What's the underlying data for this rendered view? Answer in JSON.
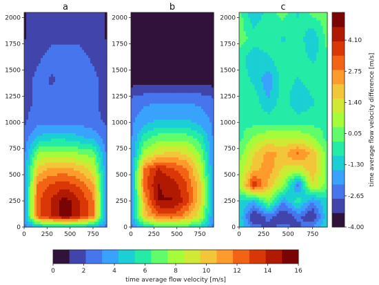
{
  "chart_data": {
    "type": "heatmap",
    "shared_x_ticks": [
      "0",
      "250",
      "500",
      "750"
    ],
    "shared_y_ticks": [
      "0",
      "250",
      "500",
      "750",
      "1000",
      "1250",
      "1500",
      "1750",
      "2000"
    ],
    "x_range": [
      0,
      900
    ],
    "y_range": [
      0,
      2050
    ],
    "panels": [
      {
        "title": "a",
        "color_scale": "velocity",
        "x": [
          0,
          150,
          300,
          450,
          600,
          750,
          900
        ],
        "y": [
          0,
          100,
          250,
          400,
          550,
          700,
          850,
          1000,
          1200,
          1400,
          1600,
          1800,
          2050
        ],
        "z": [
          [
            3.0,
            4.0,
            4.5,
            4.5,
            4.5,
            4.0,
            3.0
          ],
          [
            3.0,
            12.5,
            14.0,
            15.5,
            14.0,
            12.0,
            3.0
          ],
          [
            3.0,
            12.5,
            14.0,
            15.5,
            14.0,
            12.0,
            3.0
          ],
          [
            3.0,
            12.0,
            13.0,
            13.5,
            12.5,
            11.0,
            3.0
          ],
          [
            3.0,
            10.0,
            11.0,
            11.0,
            10.5,
            9.0,
            3.0
          ],
          [
            3.0,
            7.5,
            8.0,
            8.0,
            7.5,
            7.0,
            3.0
          ],
          [
            2.5,
            4.5,
            5.0,
            5.0,
            4.5,
            4.0,
            2.5
          ],
          [
            2.0,
            3.0,
            3.0,
            3.0,
            3.0,
            2.5,
            2.0
          ],
          [
            1.5,
            2.5,
            2.5,
            3.0,
            2.5,
            2.5,
            1.5
          ],
          [
            1.5,
            2.5,
            2.0,
            2.5,
            3.0,
            2.5,
            1.5
          ],
          [
            1.5,
            2.0,
            2.5,
            2.5,
            2.5,
            2.0,
            1.5
          ],
          [
            1.0,
            1.5,
            2.0,
            2.0,
            2.0,
            1.5,
            1.0
          ],
          [
            1.0,
            1.5,
            1.5,
            1.5,
            2.0,
            1.5,
            1.0
          ]
        ]
      },
      {
        "title": "b",
        "color_scale": "velocity",
        "x": [
          0,
          150,
          300,
          450,
          600,
          750,
          900
        ],
        "y": [
          0,
          100,
          250,
          400,
          550,
          700,
          850,
          1000,
          1200,
          1400,
          1600,
          1800,
          2050
        ],
        "z": [
          [
            3.0,
            5.0,
            6.0,
            6.0,
            6.0,
            5.0,
            3.0
          ],
          [
            3.0,
            10.0,
            12.0,
            12.5,
            11.0,
            9.0,
            3.0
          ],
          [
            3.0,
            11.0,
            15.0,
            15.0,
            13.5,
            10.0,
            3.0
          ],
          [
            3.0,
            12.5,
            15.0,
            14.5,
            13.0,
            10.0,
            3.0
          ],
          [
            3.0,
            12.0,
            14.0,
            13.0,
            12.0,
            9.0,
            3.0
          ],
          [
            3.0,
            8.0,
            9.5,
            10.0,
            9.5,
            7.5,
            3.0
          ],
          [
            3.0,
            6.0,
            7.0,
            7.0,
            7.0,
            6.0,
            3.0
          ],
          [
            3.0,
            4.0,
            4.5,
            4.5,
            4.5,
            4.0,
            3.0
          ],
          [
            2.5,
            3.0,
            3.0,
            3.0,
            3.0,
            3.0,
            2.5
          ],
          [
            0.5,
            0.5,
            0.5,
            0.5,
            0.5,
            0.5,
            0.5
          ],
          [
            0.5,
            0.5,
            0.5,
            0.5,
            0.5,
            0.5,
            0.5
          ],
          [
            0.5,
            0.5,
            0.5,
            0.5,
            0.5,
            0.5,
            0.5
          ],
          [
            0.5,
            0.5,
            0.5,
            0.5,
            0.5,
            0.5,
            0.5
          ]
        ]
      },
      {
        "title": "c",
        "color_scale": "difference",
        "x": [
          0,
          150,
          300,
          450,
          600,
          750,
          900
        ],
        "y": [
          0,
          100,
          250,
          400,
          550,
          700,
          850,
          1000,
          1200,
          1400,
          1600,
          1800,
          2050
        ],
        "z": [
          [
            -1.0,
            -2.5,
            -3.0,
            -2.5,
            -3.0,
            -2.0,
            -1.0
          ],
          [
            -1.0,
            -3.5,
            -2.5,
            -3.5,
            -2.5,
            -3.5,
            -1.0
          ],
          [
            -1.0,
            -1.5,
            0.5,
            -2.0,
            -0.5,
            -2.0,
            -1.0
          ],
          [
            0.5,
            4.0,
            2.0,
            0.5,
            -2.5,
            1.5,
            0.0
          ],
          [
            0.5,
            2.0,
            2.5,
            1.5,
            1.0,
            2.0,
            0.0
          ],
          [
            0.0,
            1.5,
            2.5,
            2.0,
            3.0,
            2.0,
            0.0
          ],
          [
            -0.5,
            0.5,
            1.0,
            1.0,
            1.0,
            0.5,
            -0.5
          ],
          [
            -0.5,
            -0.5,
            -0.5,
            -0.5,
            -0.5,
            -0.5,
            -0.5
          ],
          [
            -0.5,
            -0.5,
            -1.5,
            -0.5,
            -1.5,
            -1.0,
            -0.5
          ],
          [
            -0.5,
            -1.0,
            -2.0,
            -0.5,
            -1.0,
            -0.5,
            -0.5
          ],
          [
            -0.5,
            -1.5,
            -1.0,
            -0.5,
            -0.5,
            -1.0,
            -0.5
          ],
          [
            0.0,
            -0.5,
            -0.5,
            -1.0,
            -0.5,
            -1.5,
            0.0
          ],
          [
            0.0,
            -1.5,
            -0.5,
            0.0,
            -1.0,
            0.0,
            0.0
          ]
        ]
      }
    ],
    "colorbars": [
      {
        "label": "time average flow velocity difference [m/s]",
        "orientation": "vertical",
        "range": [
          -4.0,
          5.3
        ],
        "ticks": [
          -4.0,
          -2.65,
          -1.3,
          0.05,
          1.4,
          2.75,
          4.1
        ],
        "tick_labels": [
          "-4.00",
          "-2.65",
          "-1.30",
          "0.05",
          "1.40",
          "2.75",
          "4.10"
        ]
      },
      {
        "label": "time average flow velocity [m/s]",
        "orientation": "horizontal",
        "range": [
          0,
          16
        ],
        "ticks": [
          0,
          2,
          4,
          6,
          8,
          10,
          12,
          14,
          16
        ],
        "tick_labels": [
          "0",
          "2",
          "4",
          "6",
          "8",
          "10",
          "12",
          "14",
          "16"
        ]
      }
    ],
    "colormap": [
      "#30123b",
      "#4145ab",
      "#4675ed",
      "#39a2fc",
      "#1bcfd4",
      "#24eca6",
      "#61fc6c",
      "#a4fc3b",
      "#d1e834",
      "#f3c63a",
      "#fe9b2d",
      "#f36315",
      "#d93806",
      "#b11901",
      "#7a0403"
    ]
  }
}
